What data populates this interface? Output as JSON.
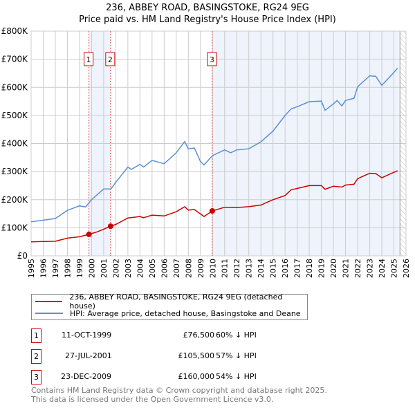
{
  "title": "236, ABBEY ROAD, BASINGSTOKE, RG24 9EG",
  "subtitle": "Price paid vs. HM Land Registry's House Price Index (HPI)",
  "chart_data": {
    "type": "line",
    "title": "236, ABBEY ROAD, BASINGSTOKE, RG24 9EG",
    "subtitle": "Price paid vs. HM Land Registry's House Price Index (HPI)",
    "xlim": [
      1995,
      2026
    ],
    "ylim": [
      0,
      800000
    ],
    "x_ticks": [
      "1995",
      "1996",
      "1997",
      "1998",
      "1999",
      "2000",
      "2001",
      "2002",
      "2003",
      "2004",
      "2005",
      "2006",
      "2007",
      "2008",
      "2009",
      "2010",
      "2011",
      "2012",
      "2013",
      "2014",
      "2015",
      "2016",
      "2017",
      "2018",
      "2019",
      "2020",
      "2021",
      "2022",
      "2023",
      "2024",
      "2025",
      "2026"
    ],
    "y_ticks": [
      {
        "v": 0,
        "label": "£0"
      },
      {
        "v": 100000,
        "label": "£100K"
      },
      {
        "v": 200000,
        "label": "£200K"
      },
      {
        "v": 300000,
        "label": "£300K"
      },
      {
        "v": 400000,
        "label": "£400K"
      },
      {
        "v": 500000,
        "label": "£500K"
      },
      {
        "v": 600000,
        "label": "£600K"
      },
      {
        "v": 700000,
        "label": "£700K"
      },
      {
        "v": 800000,
        "label": "£800K"
      }
    ],
    "grid": true,
    "series": [
      {
        "name": "236, ABBEY ROAD, BASINGSTOKE, RG24 9EG (detached house)",
        "color": "#cc0000",
        "x": [
          1995,
          1996,
          1997,
          1998,
          1999,
          1999.78,
          2000.5,
          2001,
          2001.57,
          2002,
          2003,
          2004,
          2004.3,
          2005,
          2006,
          2007,
          2007.7,
          2008,
          2008.5,
          2009.3,
          2009.98,
          2011,
          2012,
          2013,
          2014,
          2015,
          2016,
          2016.5,
          2017,
          2018,
          2019,
          2019.3,
          2020,
          2020.7,
          2021,
          2021.7,
          2022,
          2023,
          2023.5,
          2024,
          2024.7,
          2025.3
        ],
        "y": [
          50000,
          51000,
          52000,
          63000,
          68000,
          76500,
          86000,
          95000,
          105500,
          112000,
          135000,
          140000,
          136000,
          145000,
          142000,
          157000,
          175000,
          163000,
          165000,
          140000,
          160000,
          173000,
          172000,
          175000,
          181000,
          200000,
          215000,
          235000,
          240000,
          250000,
          250000,
          237000,
          248000,
          245000,
          252000,
          255000,
          275000,
          294000,
          293000,
          278000,
          292000,
          303000
        ]
      },
      {
        "name": "HPI: Average price, detached house, Basingstoke and Deane",
        "color": "#5b8fd4",
        "x": [
          1995,
          1996,
          1997,
          1998,
          1999,
          1999.5,
          2000,
          2001,
          2001.6,
          2002,
          2003,
          2003.3,
          2004,
          2004.3,
          2005,
          2006,
          2007,
          2007.7,
          2008,
          2008.5,
          2009,
          2009.3,
          2010,
          2011,
          2011.5,
          2012,
          2013,
          2014,
          2015,
          2016,
          2016.5,
          2017,
          2018,
          2019,
          2019.3,
          2020,
          2020.3,
          2020.7,
          2021,
          2021.7,
          2022,
          2023,
          2023.5,
          2024,
          2024.7,
          2025.3
        ],
        "y": [
          121000,
          127000,
          133000,
          162000,
          178000,
          174000,
          200000,
          238000,
          238000,
          262000,
          316000,
          308000,
          326000,
          316000,
          340000,
          328000,
          367000,
          407000,
          381000,
          384000,
          336000,
          324000,
          357000,
          377000,
          367000,
          377000,
          381000,
          406000,
          444000,
          500000,
          523000,
          531000,
          549000,
          551000,
          518000,
          541000,
          553000,
          534000,
          553000,
          561000,
          602000,
          641000,
          639000,
          607000,
          639000,
          668000
        ]
      }
    ],
    "legend": "below",
    "shaded_ranges": [
      [
        1999.78,
        2001.57
      ],
      [
        2009.98,
        2025.5
      ]
    ],
    "hatched_range": [
      2025.5,
      2026
    ]
  },
  "sales": [
    {
      "num": "1",
      "date": "11-OCT-1999",
      "price": "£76,500",
      "hpi": "60% ↓ HPI",
      "x": 1999.78,
      "y": 76500
    },
    {
      "num": "2",
      "date": "27-JUL-2001",
      "price": "£105,500",
      "hpi": "57% ↓ HPI",
      "x": 2001.57,
      "y": 105500
    },
    {
      "num": "3",
      "date": "23-DEC-2009",
      "price": "£160,000",
      "hpi": "54% ↓ HPI",
      "x": 2009.98,
      "y": 160000
    }
  ],
  "legend": {
    "red": "236, ABBEY ROAD, BASINGSTOKE, RG24 9EG (detached house)",
    "blue": "HPI: Average price, detached house, Basingstoke and Deane"
  },
  "footer": {
    "line1": "Contains HM Land Registry data © Crown copyright and database right 2025.",
    "line2": "This data is licensed under the Open Government Licence v3.0."
  }
}
